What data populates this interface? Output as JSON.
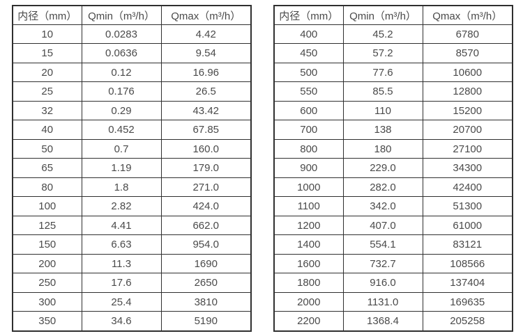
{
  "colors": {
    "border": "#2f2f2f",
    "text": "#4a4a4a",
    "background": "#ffffff"
  },
  "tables": [
    {
      "name": "flow-rate-table-small-diameters",
      "headers": [
        "内径（mm）",
        "Qmin（m³/h）",
        "Qmax（m³/h）"
      ],
      "rows": [
        [
          "10",
          "0.0283",
          "4.42"
        ],
        [
          "15",
          "0.0636",
          "9.54"
        ],
        [
          "20",
          "0.12",
          "16.96"
        ],
        [
          "25",
          "0.176",
          "26.5"
        ],
        [
          "32",
          "0.29",
          "43.42"
        ],
        [
          "40",
          "0.452",
          "67.85"
        ],
        [
          "50",
          "0.7",
          "160.0"
        ],
        [
          "65",
          "1.19",
          "179.0"
        ],
        [
          "80",
          "1.8",
          "271.0"
        ],
        [
          "100",
          "2.82",
          "424.0"
        ],
        [
          "125",
          "4.41",
          "662.0"
        ],
        [
          "150",
          "6.63",
          "954.0"
        ],
        [
          "200",
          "11.3",
          "1690"
        ],
        [
          "250",
          "17.6",
          "2650"
        ],
        [
          "300",
          "25.4",
          "3810"
        ],
        [
          "350",
          "34.6",
          "5190"
        ]
      ]
    },
    {
      "name": "flow-rate-table-large-diameters",
      "headers": [
        "内径（mm）",
        "Qmin（m³/h）",
        "Qmax（m³/h）"
      ],
      "rows": [
        [
          "400",
          "45.2",
          "6780"
        ],
        [
          "450",
          "57.2",
          "8570"
        ],
        [
          "500",
          "77.6",
          "10600"
        ],
        [
          "550",
          "85.5",
          "12800"
        ],
        [
          "600",
          "110",
          "15200"
        ],
        [
          "700",
          "138",
          "20700"
        ],
        [
          "800",
          "180",
          "27100"
        ],
        [
          "900",
          "229.0",
          "34300"
        ],
        [
          "1000",
          "282.0",
          "42400"
        ],
        [
          "1100",
          "342.0",
          "51300"
        ],
        [
          "1200",
          "407.0",
          "61000"
        ],
        [
          "1400",
          "554.1",
          "83121"
        ],
        [
          "1600",
          "732.7",
          "108566"
        ],
        [
          "1800",
          "916.0",
          "137404"
        ],
        [
          "2000",
          "1131.0",
          "169635"
        ],
        [
          "2200",
          "1368.4",
          "205258"
        ]
      ]
    }
  ]
}
